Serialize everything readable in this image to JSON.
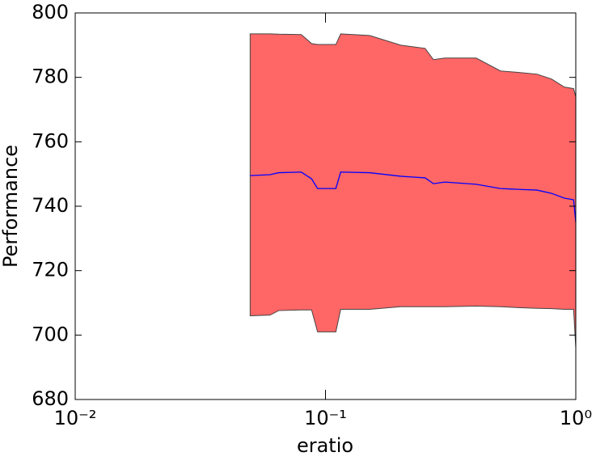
{
  "chart_data": {
    "type": "band-line",
    "xlabel": "eratio",
    "ylabel": "Performance",
    "x": [
      0.05,
      0.06,
      0.065,
      0.08,
      0.088,
      0.093,
      0.11,
      0.115,
      0.15,
      0.2,
      0.25,
      0.27,
      0.3,
      0.4,
      0.5,
      0.6,
      0.7,
      0.8,
      0.9,
      0.98,
      1.0
    ],
    "values": [
      749.5,
      749.8,
      750.4,
      750.6,
      748.5,
      745.5,
      745.5,
      750.6,
      750.4,
      749.3,
      748.8,
      747,
      747.5,
      746.8,
      745.5,
      745.2,
      745,
      744,
      742.5,
      742,
      735
    ],
    "band": {
      "upper": [
        793.5,
        793.5,
        793.4,
        793.3,
        790.5,
        790.2,
        790.2,
        793.5,
        793,
        790,
        789,
        785.5,
        786,
        786,
        782,
        781.5,
        781,
        779.5,
        777,
        776.5,
        774
      ],
      "lower": [
        706,
        706.2,
        707.6,
        707.8,
        707.8,
        701,
        701,
        708,
        708,
        708.8,
        708.8,
        708.8,
        708.8,
        709,
        708.8,
        708.5,
        708.3,
        708.2,
        708,
        708,
        696
      ]
    },
    "color": "#0000ff",
    "band_color": "#ff6666",
    "band_edge": "#444444",
    "xscale": "log",
    "xlim": [
      0.01,
      1
    ],
    "ylim": [
      680,
      800
    ],
    "xticks": [
      {
        "value": 0.01,
        "label": "10⁻²"
      },
      {
        "value": 0.1,
        "label": "10⁻¹"
      },
      {
        "value": 1,
        "label": "10⁰"
      }
    ],
    "yticks": [
      680,
      700,
      720,
      740,
      760,
      780,
      800
    ]
  }
}
